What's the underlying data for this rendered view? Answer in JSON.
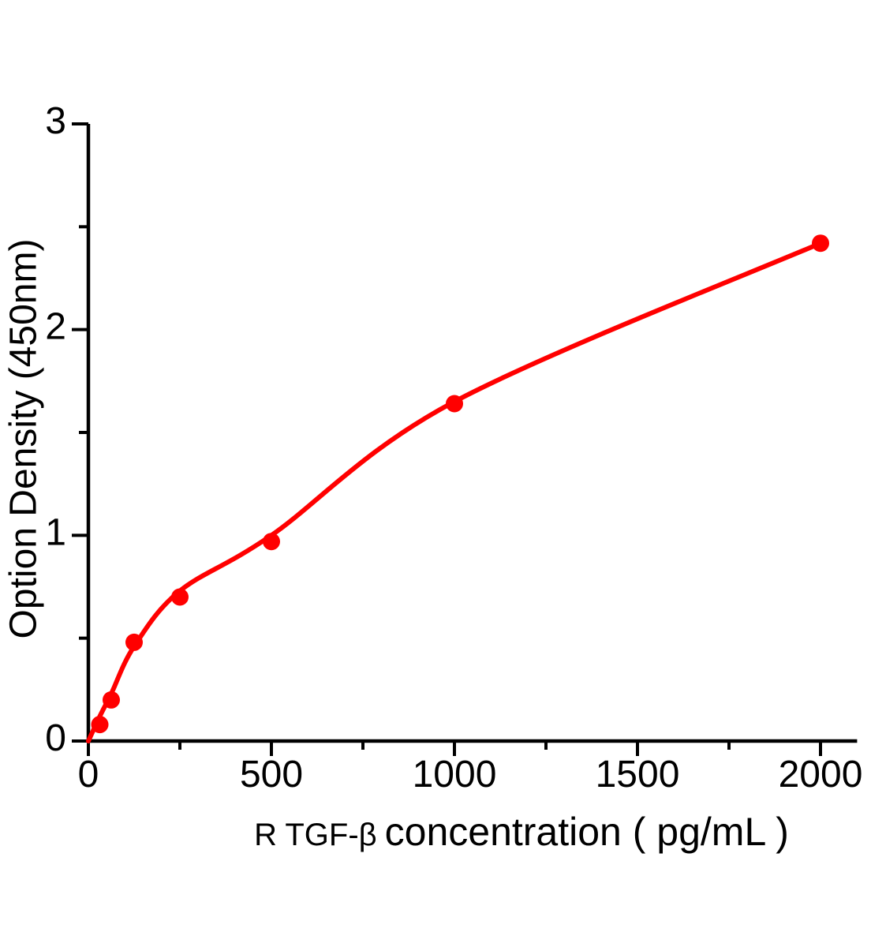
{
  "chart_data": {
    "type": "scatter",
    "title": "",
    "ylabel": "Option Density (450nm)",
    "xlabel_prefix": "R TGF-β",
    "xlabel_main": "concentration ( pg/mL )",
    "xlim": [
      0,
      2100
    ],
    "ylim": [
      0,
      3
    ],
    "x_ticks": [
      0,
      500,
      1000,
      1500,
      2000
    ],
    "x_minor_ticks": [
      250,
      750,
      1250,
      1750
    ],
    "y_ticks": [
      0,
      1,
      2,
      3
    ],
    "y_minor_ticks": [
      0.5,
      1.5,
      2.5
    ],
    "grid": false,
    "legend": "none",
    "axis_color": "#000000",
    "marker_color": "#ff0000",
    "line_color": "#ff0000",
    "points": [
      {
        "x": 31.25,
        "y": 0.08
      },
      {
        "x": 62.5,
        "y": 0.2
      },
      {
        "x": 125,
        "y": 0.48
      },
      {
        "x": 250,
        "y": 0.7
      },
      {
        "x": 500,
        "y": 0.97
      },
      {
        "x": 1000,
        "y": 1.64
      },
      {
        "x": 2000,
        "y": 2.42
      }
    ],
    "fit_curve": [
      [
        0,
        0.0
      ],
      [
        31.25,
        0.12
      ],
      [
        62.5,
        0.23
      ],
      [
        125,
        0.46
      ],
      [
        250,
        0.73
      ],
      [
        500,
        1.0
      ],
      [
        1000,
        1.65
      ],
      [
        2000,
        2.42
      ]
    ]
  }
}
